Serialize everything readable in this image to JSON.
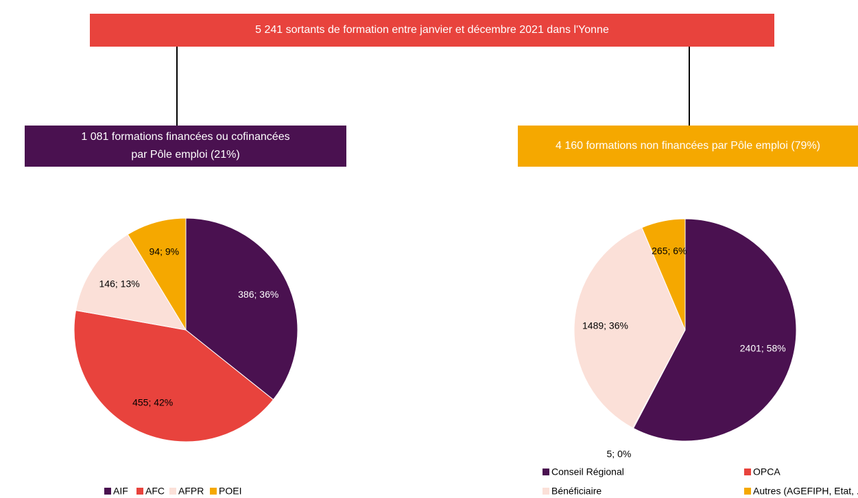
{
  "title": "5 241 sortants de formation entre janvier et décembre 2021 dans l'Yonne",
  "chart_data": [
    {
      "type": "pie",
      "title": "1 081 formations financées ou cofinancées par Pôle emploi (21%)",
      "title_color": "#4a1150",
      "categories": [
        "AIF",
        "AFC",
        "AFPR",
        "POEI"
      ],
      "values": [
        386,
        455,
        146,
        94
      ],
      "value_labels": [
        "386; 36%",
        "455; 42%",
        "146; 13%",
        "94; 9%"
      ],
      "colors": [
        "#4a1150",
        "#e8433d",
        "#fbe0d8",
        "#f5a800"
      ],
      "legend": "bottom"
    },
    {
      "type": "pie",
      "title": "4 160 formations non financées par Pôle emploi (79%)",
      "title_color": "#f5a800",
      "categories": [
        "Conseil Régional",
        "OPCA",
        "Bénéficiaire",
        "Autres (AGEFIPH, Etat, ...)"
      ],
      "values": [
        2401,
        5,
        1489,
        265
      ],
      "value_labels": [
        "2401; 58%",
        "5; 0%",
        "1489; 36%",
        "265; 6%"
      ],
      "colors": [
        "#4a1150",
        "#e8433d",
        "#fbe0d8",
        "#f5a800"
      ],
      "legend": "bottom"
    }
  ]
}
